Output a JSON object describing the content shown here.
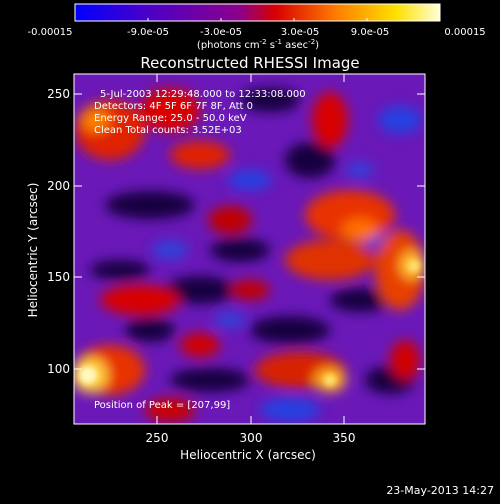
{
  "colorbar": {
    "tick_labels": [
      "-0.00015",
      "-9.0e-05",
      "-3.0e-05",
      "3.0e-05",
      "9.0e-05",
      "0.00015"
    ],
    "unit_main": "(photons cm",
    "unit_sup1": "-2",
    "unit_mid": " s",
    "unit_sup2": "-1",
    "unit_mid2": " asec",
    "unit_sup3": "-2",
    "unit_end": ")",
    "colors": [
      "#0000ff",
      "#4b00c8",
      "#8c008c",
      "#d80000",
      "#ff8000",
      "#ffe000",
      "#ffffd8"
    ]
  },
  "plot": {
    "title": "Reconstructed RHESSI Image",
    "xlabel": "Heliocentric X (arcsec)",
    "ylabel": "Heliocentric Y (arcsec)",
    "x_ticks": [
      "250",
      "300",
      "350"
    ],
    "y_ticks": [
      "100",
      "150",
      "200",
      "250"
    ],
    "xlim": [
      205,
      390
    ],
    "ylim": [
      72,
      262
    ],
    "annotations": [
      "5-Jul-2003 12:29:48.000 to 12:33:08.000",
      "Detectors: 4F 5F 6F 7F 8F, Att 0",
      "Energy Range: 25.0 - 50.0 keV",
      "Clean    Total counts: 3.52E+03"
    ],
    "peak_label": "Position of Peak = [207,99]"
  },
  "footer": {
    "timestamp": "23-May-2013 14:27"
  }
}
